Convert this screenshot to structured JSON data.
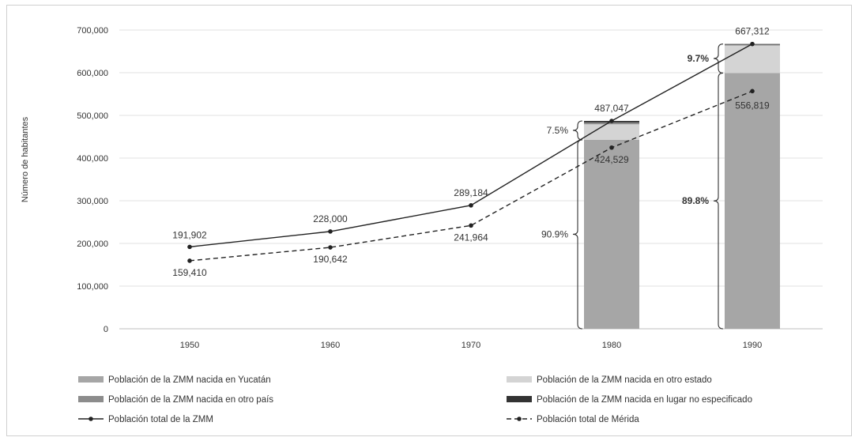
{
  "chart_data": {
    "type": "bar",
    "ylabel": "Número de habitantes",
    "ylim": [
      0,
      700000
    ],
    "yticks": [
      "0",
      "100,000",
      "200,000",
      "300,000",
      "400,000",
      "500,000",
      "600,000",
      "700,000"
    ],
    "ytick_values": [
      0,
      100000,
      200000,
      300000,
      400000,
      500000,
      600000,
      700000
    ],
    "categories": [
      "1950",
      "1960",
      "1970",
      "1980",
      "1990"
    ],
    "stacked_bars": [
      {
        "name": "Población de la ZMM nacida en Yucatán",
        "values": [
          null,
          null,
          null,
          442700,
          599200
        ],
        "color": "#a6a6a6"
      },
      {
        "name": "Población de la ZMM nacida en otro estado",
        "values": [
          null,
          null,
          null,
          36500,
          64700
        ],
        "color": "#d4d4d4"
      },
      {
        "name": "Población de la ZMM nacida en otro país",
        "values": [
          null,
          null,
          null,
          4300,
          2000
        ],
        "color": "#8c8c8c"
      },
      {
        "name": "Población de la ZMM nacida en lugar no especificado",
        "values": [
          null,
          null,
          null,
          3547,
          1412
        ],
        "color": "#333333"
      }
    ],
    "lines": [
      {
        "name": "Población total de la ZMM",
        "values": [
          191902,
          228000,
          289184,
          487047,
          667312
        ],
        "labels": [
          "191,902",
          "228,000",
          "289,184",
          "487,047",
          "667,312"
        ],
        "style": "solid"
      },
      {
        "name": "Población total de Mérida",
        "values": [
          159410,
          190642,
          241964,
          424529,
          556819
        ],
        "labels": [
          "159,410",
          "190,642",
          "241,964",
          "424,529",
          "556,819"
        ],
        "style": "dashed"
      }
    ],
    "annotations": {
      "pct_1980_other": "7.5%",
      "pct_1980_yucatan": "90.9%",
      "pct_1990_other": "9.7%",
      "pct_1990_yucatan": "89.8%"
    },
    "legend": {
      "placement": "bottom"
    }
  }
}
